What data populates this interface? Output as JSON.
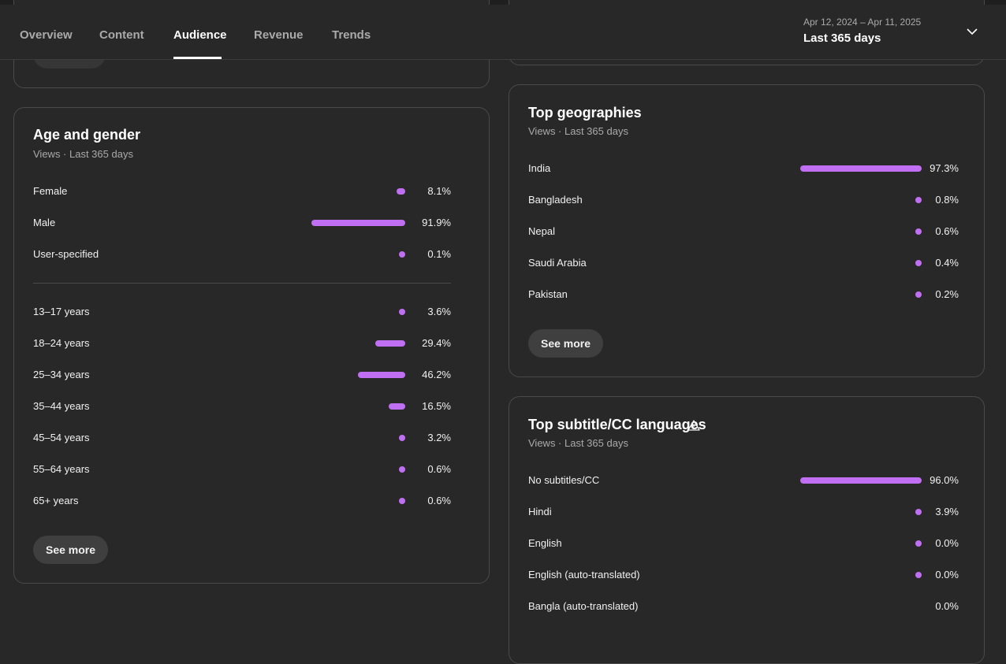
{
  "header": {
    "tabs": [
      {
        "label": "Overview",
        "active": false
      },
      {
        "label": "Content",
        "active": false
      },
      {
        "label": "Audience",
        "active": true
      },
      {
        "label": "Revenue",
        "active": false
      },
      {
        "label": "Trends",
        "active": false
      }
    ],
    "date_range": "Apr 12, 2024 – Apr 11, 2025",
    "date_label": "Last 365 days",
    "dropdown_icon": "chevron-down-icon"
  },
  "accent_color": "#c06ff2",
  "age_gender": {
    "title": "Age and gender",
    "subtitle": "Views · Last 365 days",
    "gender": [
      {
        "label": "Female",
        "value": "8.1%",
        "pct": 8.1
      },
      {
        "label": "Male",
        "value": "91.9%",
        "pct": 91.9
      },
      {
        "label": "User-specified",
        "value": "0.1%",
        "pct": 0.1
      }
    ],
    "age": [
      {
        "label": "13–17 years",
        "value": "3.6%",
        "pct": 3.6
      },
      {
        "label": "18–24 years",
        "value": "29.4%",
        "pct": 29.4
      },
      {
        "label": "25–34 years",
        "value": "46.2%",
        "pct": 46.2
      },
      {
        "label": "35–44 years",
        "value": "16.5%",
        "pct": 16.5
      },
      {
        "label": "45–54 years",
        "value": "3.2%",
        "pct": 3.2
      },
      {
        "label": "55–64 years",
        "value": "0.6%",
        "pct": 0.6
      },
      {
        "label": "65+ years",
        "value": "0.6%",
        "pct": 0.6
      }
    ],
    "see_more": "See more"
  },
  "geographies": {
    "title": "Top geographies",
    "subtitle": "Views · Last 365 days",
    "rows": [
      {
        "label": "India",
        "value": "97.3%",
        "pct": 97.3
      },
      {
        "label": "Bangladesh",
        "value": "0.8%",
        "pct": 0.8
      },
      {
        "label": "Nepal",
        "value": "0.6%",
        "pct": 0.6
      },
      {
        "label": "Saudi Arabia",
        "value": "0.4%",
        "pct": 0.4
      },
      {
        "label": "Pakistan",
        "value": "0.2%",
        "pct": 0.2
      }
    ],
    "see_more": "See more"
  },
  "subtitles": {
    "title": "Top subtitle/CC languages",
    "subtitle": "Views · Last 365 days",
    "title_icon": "warning-icon",
    "rows": [
      {
        "label": "No subtitles/CC",
        "value": "96.0%",
        "pct": 96.0
      },
      {
        "label": "Hindi",
        "value": "3.9%",
        "pct": 3.9
      },
      {
        "label": "English",
        "value": "0.0%",
        "pct": 0.0
      },
      {
        "label": "English (auto-translated)",
        "value": "0.0%",
        "pct": 0.0
      },
      {
        "label": "Bangla (auto-translated)",
        "value": "0.0%",
        "pct": 0.0
      }
    ]
  }
}
